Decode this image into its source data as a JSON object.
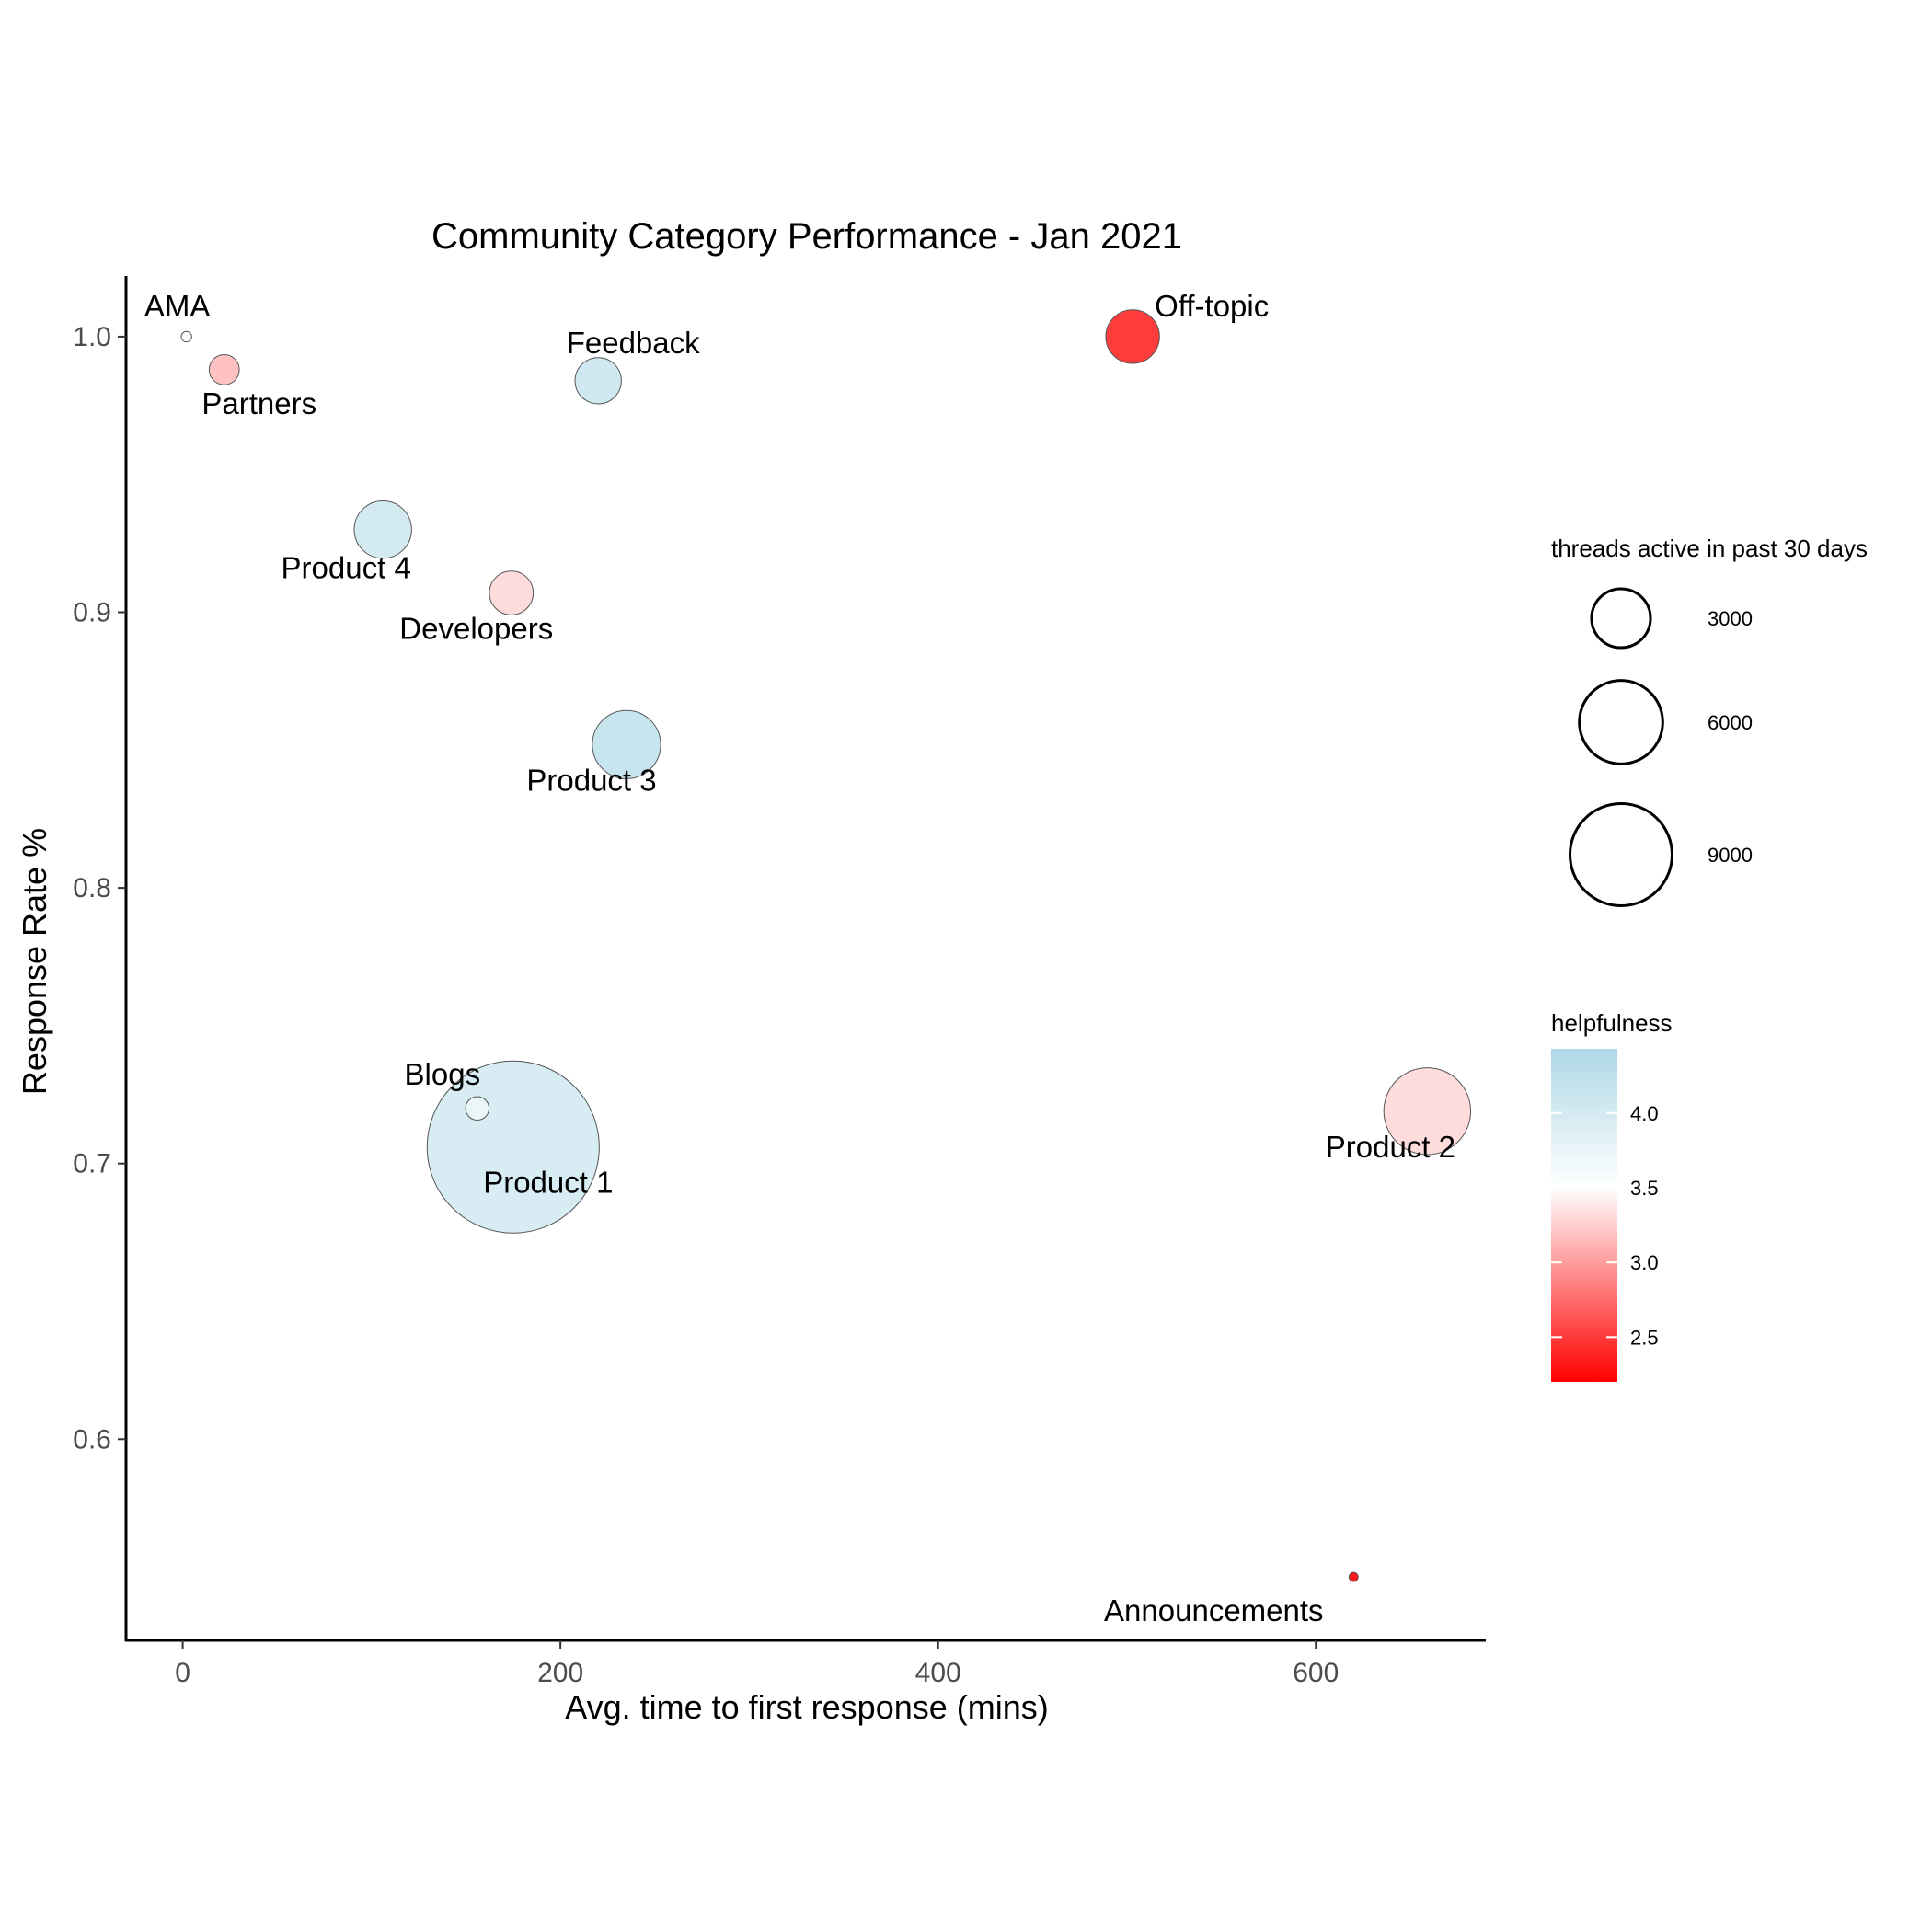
{
  "chart_data": {
    "type": "scatter",
    "title": "Community Category Performance - Jan 2021",
    "xlabel": "Avg. time to first response (mins)",
    "ylabel": "Response Rate %",
    "xlim": [
      -30,
      690
    ],
    "ylim": [
      0.527,
      1.022
    ],
    "xticks": [
      {
        "value": 0,
        "label": "0"
      },
      {
        "value": 200,
        "label": "200"
      },
      {
        "value": 400,
        "label": "400"
      },
      {
        "value": 600,
        "label": "600"
      }
    ],
    "yticks": [
      {
        "value": 0.6,
        "label": "0.6"
      },
      {
        "value": 0.7,
        "label": "0.7"
      },
      {
        "value": 0.8,
        "label": "0.8"
      },
      {
        "value": 0.9,
        "label": "0.9"
      },
      {
        "value": 1.0,
        "label": "1.0"
      }
    ],
    "grid": false,
    "size_legend": {
      "title": "threads active in past 30 days",
      "entries": [
        {
          "value": 3000,
          "label": "3000"
        },
        {
          "value": 6000,
          "label": "6000"
        },
        {
          "value": 9000,
          "label": "9000"
        }
      ]
    },
    "color_legend": {
      "title": "helpfulness",
      "low_color": "#FF0000",
      "mid_color": "#FFFFFF",
      "high_color": "#ADD8E6",
      "midpoint": 3.5,
      "range": [
        2.2,
        4.43
      ],
      "ticks": [
        {
          "value": 2.5,
          "label": "2.5"
        },
        {
          "value": 3.0,
          "label": "3.0"
        },
        {
          "value": 3.5,
          "label": "3.5"
        },
        {
          "value": 4.0,
          "label": "4.0"
        }
      ]
    },
    "points": [
      {
        "label": "AMA",
        "x": 2,
        "y": 1.0,
        "size": 40,
        "helpfulness": 3.55,
        "label_pos": "above-left"
      },
      {
        "label": "Partners",
        "x": 22,
        "y": 0.988,
        "size": 330,
        "helpfulness": 3.15,
        "label_pos": "below-right"
      },
      {
        "label": "Feedback",
        "x": 220,
        "y": 0.984,
        "size": 780,
        "helpfulness": 4.1,
        "label_pos": "above-right"
      },
      {
        "label": "Off-topic",
        "x": 503,
        "y": 1.0,
        "size": 1050,
        "helpfulness": 2.4,
        "label_pos": "above-right"
      },
      {
        "label": "Product 4",
        "x": 106,
        "y": 0.93,
        "size": 1200,
        "helpfulness": 4.05,
        "label_pos": "below-left"
      },
      {
        "label": "Developers",
        "x": 174,
        "y": 0.907,
        "size": 700,
        "helpfulness": 3.3,
        "label_pos": "below-left"
      },
      {
        "label": "Product 3",
        "x": 235,
        "y": 0.852,
        "size": 1700,
        "helpfulness": 4.2,
        "label_pos": "below-left"
      },
      {
        "label": "Blogs",
        "x": 156,
        "y": 0.72,
        "size": 200,
        "helpfulness": 3.7,
        "label_pos": "above-left"
      },
      {
        "label": "Product 1",
        "x": 175,
        "y": 0.706,
        "size": 10800,
        "helpfulness": 4.0,
        "label_pos": "below-right"
      },
      {
        "label": "Product 2",
        "x": 659,
        "y": 0.719,
        "size": 2750,
        "helpfulness": 3.3,
        "label_pos": "below-left"
      },
      {
        "label": "Announcements",
        "x": 620,
        "y": 0.55,
        "size": 30,
        "helpfulness": 2.2,
        "label_pos": "below-left"
      }
    ]
  }
}
